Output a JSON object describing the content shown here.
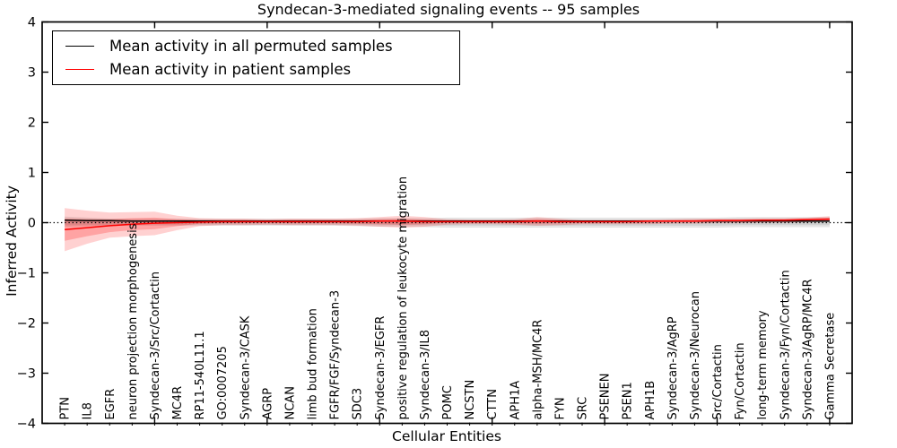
{
  "chart_data": {
    "type": "line",
    "title": "Syndecan-3-mediated signaling events -- 95 samples",
    "xlabel": "Cellular Entities",
    "ylabel": "Inferred Activity",
    "ylim": [
      -4,
      4
    ],
    "xlim": [
      0,
      36
    ],
    "ytick_labels": [
      "4",
      "3",
      "2",
      "1",
      "0",
      "−1",
      "−2",
      "−3",
      "−4"
    ],
    "yticks": [
      4,
      3,
      2,
      1,
      0,
      -1,
      -2,
      -3,
      -4
    ],
    "xticks_major": [
      5,
      10,
      15,
      20,
      25,
      30,
      35
    ],
    "grid": false,
    "legend_position": "upper left",
    "zero_line": 0,
    "categories": [
      "PTN",
      "IL8",
      "EGFR",
      "neuron projection morphogenesis",
      "Syndecan-3/Src/Cortactin",
      "MC4R",
      "RP11-540L11.1",
      "GO:0007205",
      "Syndecan-3/CASK",
      "AGRP",
      "NCAN",
      "limb bud formation",
      "FGFR/FGF/Syndecan-3",
      "SDC3",
      "Syndecan-3/EGFR",
      "positive regulation of leukocyte migration",
      "Syndecan-3/IL8",
      "POMC",
      "NCSTN",
      "CTTN",
      "APH1A",
      "alpha-MSH/MC4R",
      "FYN",
      "SRC",
      "PSENEN",
      "PSEN1",
      "APH1B",
      "Syndecan-3/AgRP",
      "Syndecan-3/Neurocan",
      "Src/Cortactin",
      "Fyn/Cortactin",
      "long-term memory",
      "Syndecan-3/Fyn/Cortactin",
      "Syndecan-3/AgRP/MC4R",
      "Gamma Secretase"
    ],
    "series": [
      {
        "name": "Mean activity in all permuted samples",
        "color": "#000000",
        "values": [
          0.05,
          0.04,
          0.04,
          0.03,
          0.03,
          0.03,
          0.03,
          0.03,
          0.03,
          0.03,
          0.03,
          0.03,
          0.03,
          0.03,
          0.03,
          0.03,
          0.03,
          0.03,
          0.03,
          0.03,
          0.03,
          0.03,
          0.03,
          0.03,
          0.03,
          0.03,
          0.03,
          0.03,
          0.03,
          0.03,
          0.03,
          0.03,
          0.03,
          0.03,
          0.03
        ]
      },
      {
        "name": "Mean activity in patient samples",
        "color": "#ff0000",
        "values": [
          -0.14,
          -0.1,
          -0.06,
          -0.03,
          -0.01,
          0.0,
          0.01,
          0.02,
          0.02,
          0.02,
          0.02,
          0.02,
          0.02,
          0.02,
          0.03,
          0.03,
          0.02,
          0.02,
          0.02,
          0.02,
          0.02,
          0.03,
          0.02,
          0.02,
          0.02,
          0.02,
          0.03,
          0.03,
          0.03,
          0.04,
          0.04,
          0.05,
          0.05,
          0.06,
          0.07
        ]
      }
    ],
    "bands": [
      {
        "name": "permuted-ci-outer",
        "color": "#999999",
        "opacity": 0.25,
        "upper": [
          0.12,
          0.1,
          0.08,
          0.08,
          0.08,
          0.08,
          0.08,
          0.08,
          0.08,
          0.08,
          0.08,
          0.08,
          0.08,
          0.08,
          0.09,
          0.09,
          0.09,
          0.1,
          0.1,
          0.1,
          0.1,
          0.1,
          0.1,
          0.1,
          0.1,
          0.1,
          0.1,
          0.1,
          0.1,
          0.1,
          0.11,
          0.11,
          0.11,
          0.11,
          0.11
        ],
        "lower": [
          -0.08,
          -0.07,
          -0.06,
          -0.06,
          -0.06,
          -0.06,
          -0.06,
          -0.06,
          -0.06,
          -0.06,
          -0.06,
          -0.06,
          -0.06,
          -0.07,
          -0.08,
          -0.08,
          -0.09,
          -0.1,
          -0.1,
          -0.1,
          -0.1,
          -0.1,
          -0.1,
          -0.1,
          -0.1,
          -0.1,
          -0.1,
          -0.1,
          -0.1,
          -0.1,
          -0.09,
          -0.09,
          -0.09,
          -0.09,
          -0.09
        ]
      },
      {
        "name": "permuted-ci-inner",
        "color": "#999999",
        "opacity": 0.25,
        "upper": [
          0.08,
          0.07,
          0.06,
          0.05,
          0.05,
          0.05,
          0.05,
          0.05,
          0.05,
          0.05,
          0.05,
          0.05,
          0.05,
          0.05,
          0.06,
          0.06,
          0.06,
          0.06,
          0.06,
          0.06,
          0.06,
          0.06,
          0.06,
          0.06,
          0.06,
          0.06,
          0.06,
          0.06,
          0.06,
          0.06,
          0.07,
          0.07,
          0.07,
          0.07,
          0.07
        ],
        "lower": [
          -0.05,
          -0.05,
          -0.04,
          -0.04,
          -0.04,
          -0.04,
          -0.04,
          -0.04,
          -0.04,
          -0.04,
          -0.04,
          -0.04,
          -0.04,
          -0.04,
          -0.05,
          -0.05,
          -0.05,
          -0.06,
          -0.06,
          -0.06,
          -0.06,
          -0.06,
          -0.06,
          -0.06,
          -0.06,
          -0.06,
          -0.06,
          -0.06,
          -0.06,
          -0.06,
          -0.05,
          -0.05,
          -0.05,
          -0.05,
          -0.05
        ]
      },
      {
        "name": "patient-ci-outer",
        "color": "#ff0000",
        "opacity": 0.18,
        "upper": [
          0.29,
          0.24,
          0.2,
          0.21,
          0.22,
          0.14,
          0.09,
          0.08,
          0.08,
          0.07,
          0.08,
          0.08,
          0.08,
          0.09,
          0.11,
          0.14,
          0.11,
          0.07,
          0.06,
          0.06,
          0.07,
          0.11,
          0.08,
          0.05,
          0.05,
          0.05,
          0.06,
          0.07,
          0.08,
          0.08,
          0.08,
          0.09,
          0.09,
          0.1,
          0.13
        ],
        "lower": [
          -0.57,
          -0.42,
          -0.3,
          -0.27,
          -0.25,
          -0.15,
          -0.07,
          -0.05,
          -0.05,
          -0.04,
          -0.05,
          -0.05,
          -0.05,
          -0.06,
          -0.08,
          -0.1,
          -0.08,
          -0.04,
          -0.03,
          -0.03,
          -0.04,
          -0.06,
          -0.05,
          -0.03,
          -0.03,
          -0.03,
          -0.03,
          -0.02,
          -0.02,
          -0.01,
          -0.01,
          0.0,
          0.0,
          0.01,
          0.02
        ]
      },
      {
        "name": "patient-ci-inner",
        "color": "#ff0000",
        "opacity": 0.22,
        "upper": [
          0.08,
          0.07,
          0.07,
          0.09,
          0.1,
          0.07,
          0.05,
          0.05,
          0.05,
          0.04,
          0.05,
          0.05,
          0.05,
          0.05,
          0.07,
          0.08,
          0.06,
          0.04,
          0.04,
          0.04,
          0.04,
          0.07,
          0.05,
          0.04,
          0.04,
          0.04,
          0.04,
          0.05,
          0.05,
          0.06,
          0.06,
          0.06,
          0.07,
          0.08,
          0.1
        ],
        "lower": [
          -0.36,
          -0.27,
          -0.19,
          -0.15,
          -0.13,
          -0.07,
          -0.02,
          -0.01,
          -0.01,
          0.0,
          -0.01,
          -0.01,
          -0.01,
          -0.02,
          -0.03,
          -0.04,
          -0.03,
          0.0,
          0.0,
          0.0,
          -0.01,
          -0.02,
          -0.01,
          0.0,
          0.0,
          0.0,
          0.0,
          0.01,
          0.01,
          0.02,
          0.02,
          0.03,
          0.03,
          0.04,
          0.05
        ]
      }
    ]
  }
}
